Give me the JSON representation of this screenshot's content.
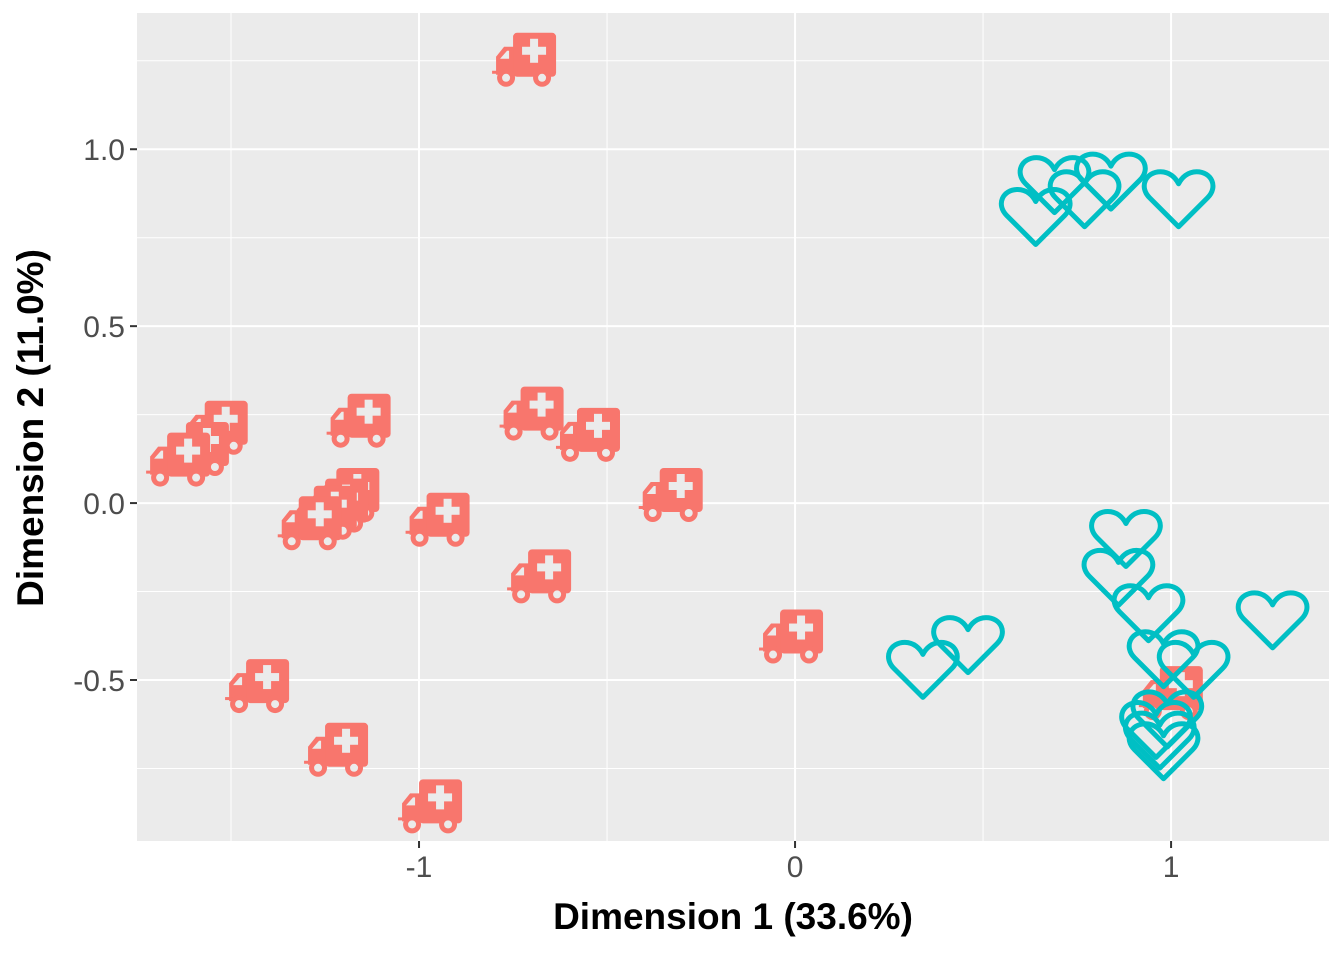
{
  "chart_data": {
    "type": "scatter",
    "title": "",
    "xlabel": "Dimension 1 (33.6%)",
    "ylabel": "Dimension 2 (11.0%)",
    "xlim": [
      -1.75,
      1.42
    ],
    "ylim": [
      -0.955,
      1.385
    ],
    "x_ticks": [
      -1,
      0,
      1
    ],
    "x_tick_labels": [
      "-1",
      "0",
      "1"
    ],
    "y_ticks": [
      -0.5,
      0.0,
      0.5,
      1.0
    ],
    "y_tick_labels": [
      "-0.5",
      "0.0",
      "0.5",
      "1.0"
    ],
    "grid": true,
    "legend": "none",
    "colors": {
      "panel": "#EBEBEB",
      "grid": "#FFFFFF",
      "ambulance": "#F8766D",
      "heart": "#00BFC4"
    },
    "series": [
      {
        "marker": "ambulance-icon",
        "color": "#F8766D",
        "points": [
          [
            -0.71,
            1.25
          ],
          [
            -1.53,
            0.21
          ],
          [
            -1.58,
            0.15
          ],
          [
            -1.63,
            0.12
          ],
          [
            -1.15,
            0.23
          ],
          [
            -0.69,
            0.25
          ],
          [
            -0.54,
            0.19
          ],
          [
            -0.32,
            0.02
          ],
          [
            -1.18,
            0.02
          ],
          [
            -1.21,
            -0.01
          ],
          [
            -1.24,
            -0.03
          ],
          [
            -1.28,
            -0.06
          ],
          [
            -0.94,
            -0.05
          ],
          [
            -0.67,
            -0.21
          ],
          [
            -1.42,
            -0.52
          ],
          [
            -1.21,
            -0.7
          ],
          [
            -0.96,
            -0.86
          ],
          [
            0.0,
            -0.38
          ],
          [
            1.01,
            -0.54
          ]
        ]
      },
      {
        "marker": "heart-icon",
        "color": "#00BFC4",
        "points": [
          [
            0.64,
            0.81
          ],
          [
            0.69,
            0.9
          ],
          [
            0.77,
            0.86
          ],
          [
            0.84,
            0.91
          ],
          [
            1.02,
            0.86
          ],
          [
            0.88,
            -0.1
          ],
          [
            0.86,
            -0.21
          ],
          [
            0.94,
            -0.31
          ],
          [
            0.98,
            -0.44
          ],
          [
            1.06,
            -0.47
          ],
          [
            1.27,
            -0.33
          ],
          [
            0.46,
            -0.4
          ],
          [
            0.34,
            -0.47
          ],
          [
            0.99,
            -0.61
          ],
          [
            0.96,
            -0.64
          ],
          [
            0.97,
            -0.67
          ],
          [
            0.98,
            -0.7
          ]
        ]
      }
    ]
  }
}
